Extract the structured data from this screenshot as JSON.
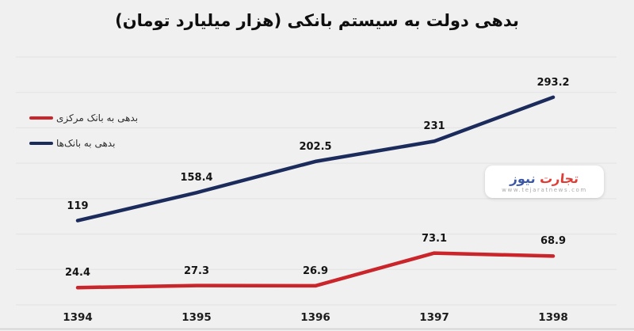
{
  "title": "بدهی دولت به سیستم بانکی (هزار میلیارد تومان)",
  "chart_data": {
    "type": "line",
    "categories": [
      "1394",
      "1395",
      "1396",
      "1397",
      "1398"
    ],
    "series": [
      {
        "name": "بدهی به بانک مرکزی",
        "color": "#c9252b",
        "values": [
          24.4,
          27.3,
          26.9,
          73.1,
          68.9
        ]
      },
      {
        "name": "بدهی به بانک‌ها",
        "color": "#1b2b5c",
        "values": [
          119,
          158.4,
          202.5,
          231,
          293.2
        ]
      }
    ],
    "title": "بدهی دولت به سیستم بانکی (هزار میلیارد تومان)",
    "xlabel": "",
    "ylabel": "",
    "ylim": [
      0,
      350
    ],
    "grid_step": 50,
    "grid": "horizontal-only, no y-axis tick labels",
    "legend_position": "left-middle",
    "data_labels": "above each point"
  },
  "watermark": {
    "brand_red": "تجارت",
    "brand_blue": "نیوز",
    "website": "www.tejaratnews.com",
    "brand_red_color": "#e23b33",
    "brand_blue_color": "#3a57a7"
  },
  "colors": {
    "background": "#f0f0f0",
    "gridline": "#e2e2e2",
    "baseline": "#d6d6d6",
    "title_text": "#0e0e0e",
    "label_text": "#141414"
  }
}
